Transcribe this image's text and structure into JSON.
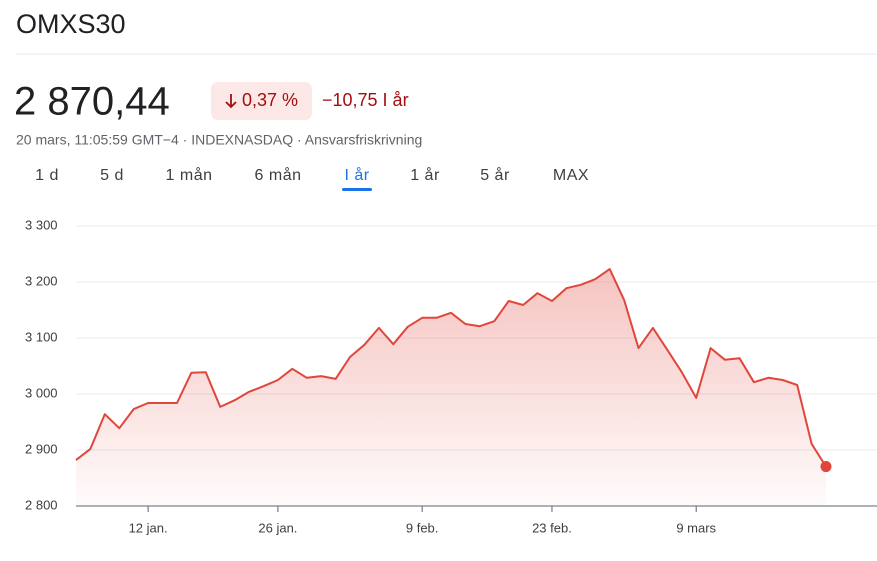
{
  "header": {
    "title": "OMXS30",
    "price": "2 870,44",
    "change_pct": "0,37 %",
    "change_abs": "−10,75 I år",
    "meta": "20 mars, 11:05:59 GMT−4 · INDEXNASDAQ · Ansvarsfriskrivning"
  },
  "ranges": [
    "1 d",
    "5 d",
    "1 mån",
    "6 mån",
    "I år",
    "1 år",
    "5 år",
    "MAX"
  ],
  "active_range": 4,
  "chart_data": {
    "type": "line",
    "color": "#e0463c",
    "categories": [
      null,
      null,
      null,
      null,
      null,
      "12 jan.",
      null,
      null,
      null,
      null,
      null,
      null,
      null,
      null,
      "26 jan.",
      null,
      null,
      null,
      null,
      null,
      null,
      null,
      null,
      null,
      "9 feb.",
      null,
      null,
      null,
      null,
      null,
      null,
      null,
      null,
      "23 feb.",
      null,
      null,
      null,
      null,
      null,
      null,
      null,
      null,
      null,
      "9 mars",
      null,
      null,
      null,
      null,
      null,
      null,
      null,
      null,
      null
    ],
    "values": [
      2882,
      2902,
      2964,
      2939,
      2973,
      2984,
      2984,
      2984,
      3038,
      3039,
      2977,
      2989,
      3004,
      3014,
      3025,
      3045,
      3029,
      3032,
      3027,
      3066,
      3088,
      3118,
      3089,
      3120,
      3136,
      3136,
      3145,
      3125,
      3121,
      3130,
      3166,
      3159,
      3180,
      3166,
      3189,
      3195,
      3205,
      3223,
      3168,
      3082,
      3118,
      3079,
      3039,
      2993,
      3082,
      3061,
      3064,
      3021,
      3029,
      3025,
      3016,
      2911,
      2870.44
    ],
    "ylim": [
      2800,
      3300
    ],
    "yticks": [
      {
        "value": 2800,
        "label": "2 800"
      },
      {
        "value": 2900,
        "label": "2 900"
      },
      {
        "value": 3000,
        "label": "3 000"
      },
      {
        "value": 3100,
        "label": "3 100"
      },
      {
        "value": 3200,
        "label": "3 200"
      },
      {
        "value": 3300,
        "label": "3 300"
      }
    ],
    "grid": true
  }
}
